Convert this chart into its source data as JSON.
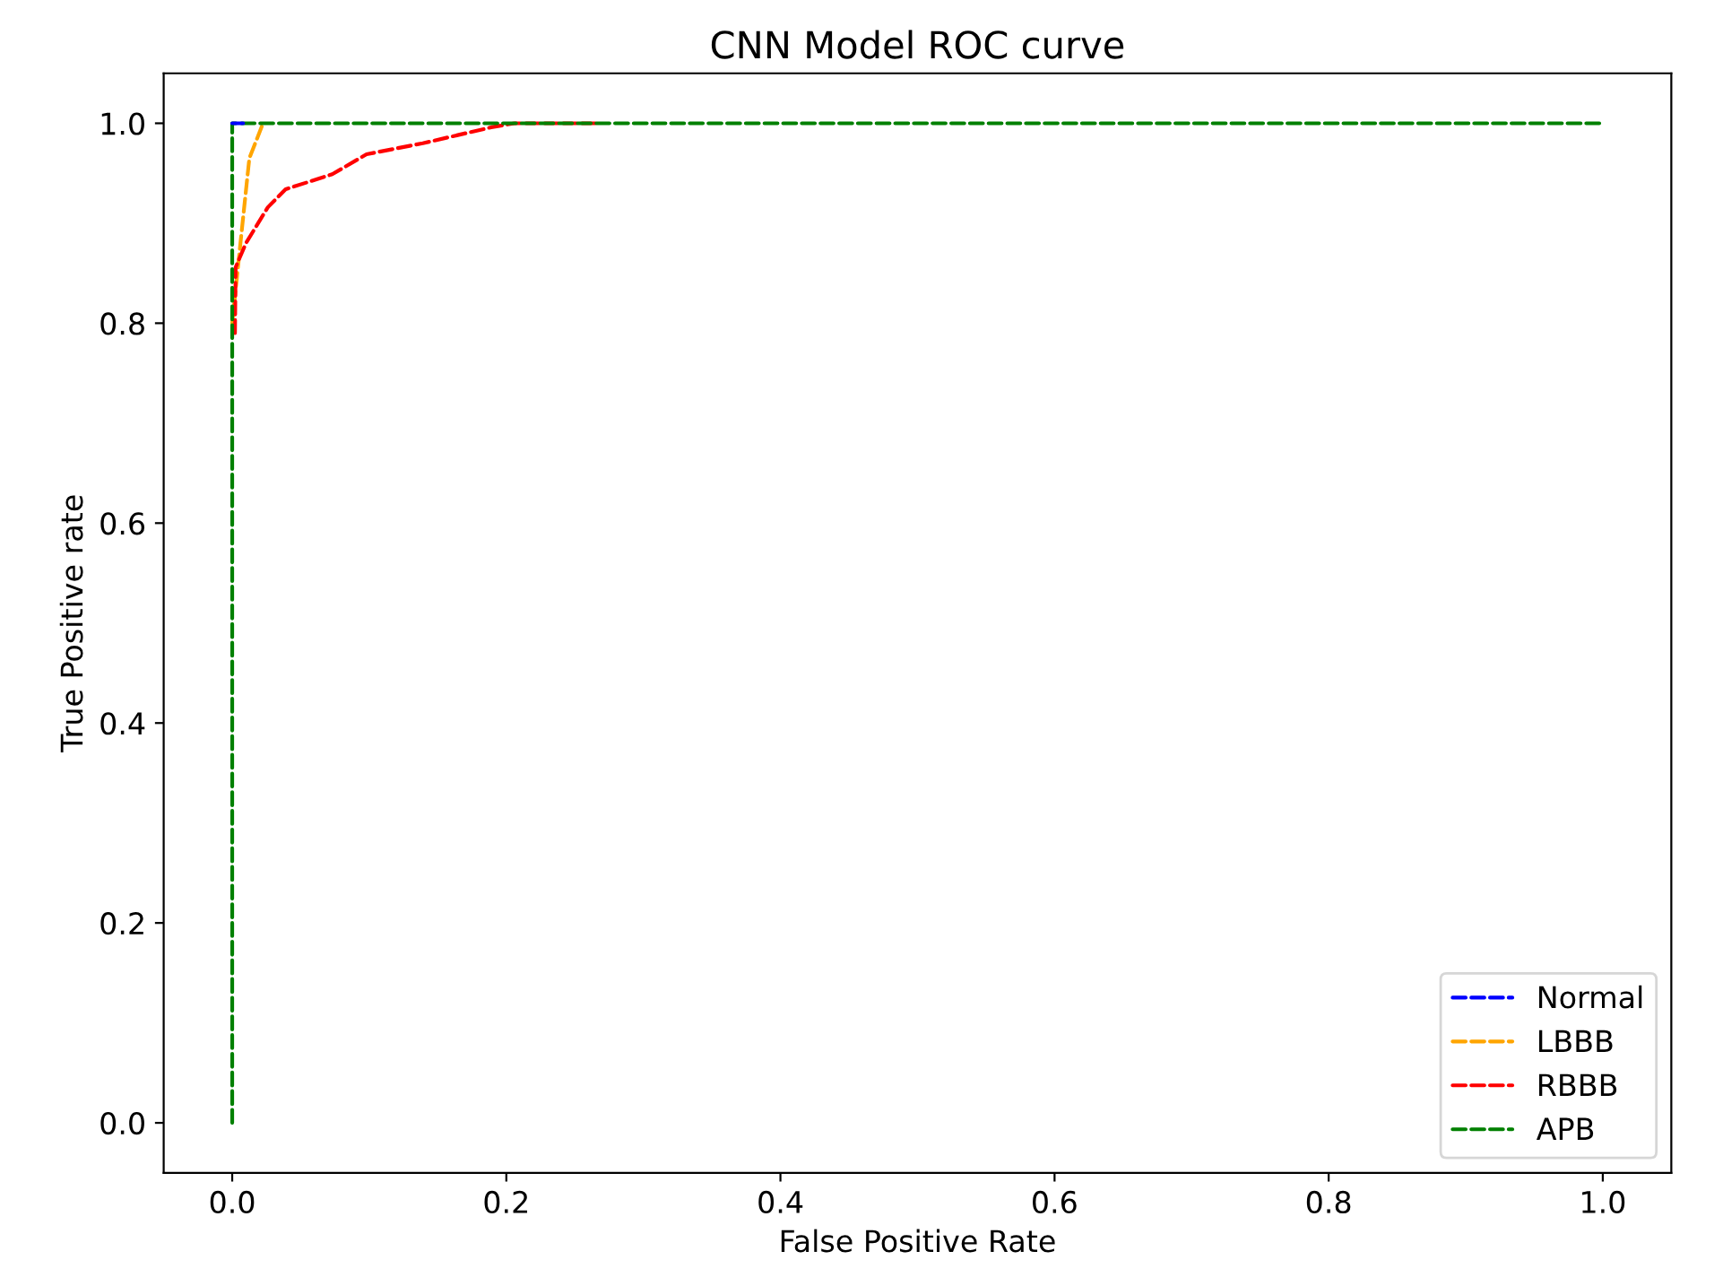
{
  "chart_data": {
    "type": "line",
    "title": "CNN Model ROC curve",
    "xlabel": "False Positive Rate",
    "ylabel": "True Positive rate",
    "xlim": [
      -0.05,
      1.05
    ],
    "ylim": [
      -0.05,
      1.05
    ],
    "xticks": [
      {
        "value": 0,
        "label": "0.0"
      },
      0.2,
      0.4,
      0.6,
      0.8,
      {
        "value": 1,
        "label": "1.0"
      }
    ],
    "yticks": [
      {
        "value": 0,
        "label": "0.0"
      },
      0.2,
      0.4,
      0.6,
      0.8,
      {
        "value": 1,
        "label": "1.0"
      }
    ],
    "grid": false,
    "legend": "bottom right",
    "line_style": "dashed",
    "marker": "none",
    "series": [
      {
        "name": "Normal",
        "color": "#0000ff",
        "x": [
          0,
          0.008
        ],
        "values": [
          1,
          1
        ]
      },
      {
        "name": "LBBB",
        "color": "#ffa500",
        "x": [
          0,
          0.006,
          0.0125,
          0.0225
        ],
        "values": [
          0.8,
          0.88,
          0.965,
          1
        ]
      },
      {
        "name": "RBBB",
        "color": "#ff0000",
        "x": [
          0.002,
          0.0025,
          0.01,
          0.026,
          0.039,
          0.073,
          0.098,
          0.139,
          0.189,
          0.206,
          0.267
        ],
        "values": [
          0.79,
          0.856,
          0.88,
          0.916,
          0.934,
          0.949,
          0.969,
          0.98,
          0.996,
          1,
          1
        ]
      },
      {
        "name": "APB",
        "color": "#008000",
        "x": [
          0,
          0,
          1
        ],
        "values": [
          0,
          1,
          1
        ]
      }
    ]
  }
}
